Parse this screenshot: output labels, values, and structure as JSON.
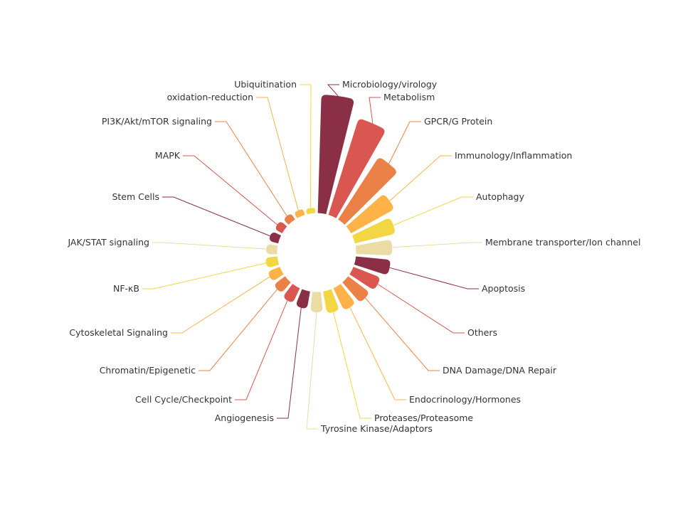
{
  "chart_data": {
    "type": "pie",
    "variant": "nightingale-rose",
    "rose_mode": "radius",
    "inner_radius_fraction": 0.25,
    "categories": [
      "Microbiology/virology",
      "Metabolism",
      "GPCR/G Protein",
      "Immunology/Inflammation",
      "Autophagy",
      "Membrane transporter/Ion channel",
      "Apoptosis",
      "Others",
      "DNA Damage/DNA Repair",
      "Endocrinology/Hormones",
      "Proteases/Proteasome",
      "Tyrosine Kinase/Adaptors",
      "Angiogenesis",
      "Cell Cycle/Checkpoint",
      "Chromatin/Epigenetic",
      "Cytoskeletal Signaling",
      "NF-κB",
      "JAK/STAT signaling",
      "Stem Cells",
      "MAPK",
      "PI3K/Akt/mTOR signaling",
      "oxidation-reduction",
      "Ubiquitination"
    ],
    "values": [
      100,
      85,
      62,
      40,
      33,
      28,
      27,
      22,
      20,
      18,
      16,
      14,
      12,
      11,
      9,
      8,
      7,
      6,
      5,
      4,
      3,
      2,
      1
    ],
    "colors": [
      "#8b2f47",
      "#d95750",
      "#eb8146",
      "#ffb248",
      "#f2d643",
      "#ebdba4"
    ],
    "legend": "none"
  }
}
